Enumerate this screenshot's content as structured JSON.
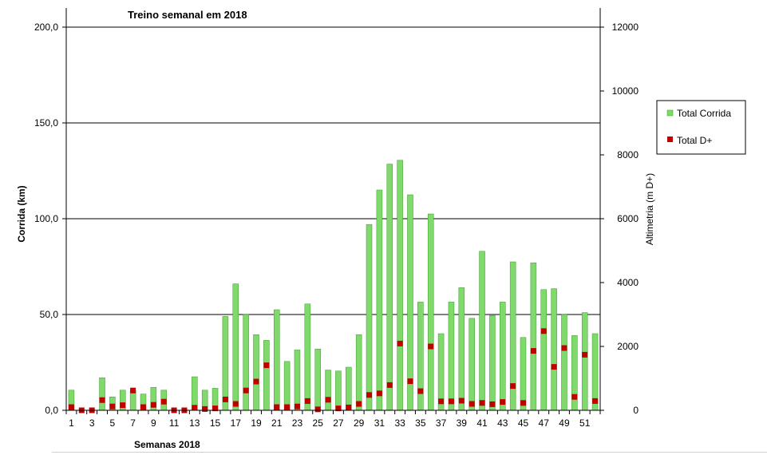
{
  "chart_data": {
    "type": "bar",
    "title": "Treino semanal em 2018",
    "xlabel": "Semanas 2018",
    "ylabel": "Corrida (km)",
    "y2label": "Altimetria (m D+)",
    "ylim": [
      0,
      200
    ],
    "y2lim": [
      0,
      12000
    ],
    "yticks": [
      "0,0",
      "50,0",
      "100,0",
      "150,0",
      "200,0"
    ],
    "y2ticks": [
      "0",
      "2000",
      "4000",
      "6000",
      "8000",
      "10000",
      "12000"
    ],
    "x_tick_labels": [
      "1",
      "3",
      "5",
      "7",
      "9",
      "11",
      "13",
      "15",
      "17",
      "19",
      "21",
      "23",
      "25",
      "27",
      "29",
      "31",
      "33",
      "35",
      "37",
      "39",
      "41",
      "43",
      "45",
      "47",
      "49",
      "51"
    ],
    "grid": "horizontal major",
    "legend_position": "right",
    "categories": [
      1,
      2,
      3,
      4,
      5,
      6,
      7,
      8,
      9,
      10,
      11,
      12,
      13,
      14,
      15,
      16,
      17,
      18,
      19,
      20,
      21,
      22,
      23,
      24,
      25,
      26,
      27,
      28,
      29,
      30,
      31,
      32,
      33,
      34,
      35,
      36,
      37,
      38,
      39,
      40,
      41,
      42,
      43,
      44,
      45,
      46,
      47,
      48,
      49,
      50,
      51,
      52
    ],
    "series": [
      {
        "name": "Total Corrida",
        "kind": "bar",
        "axis": "left",
        "color": "#7fd96b",
        "values": [
          10.5,
          0,
          0,
          17,
          7,
          10.5,
          10.5,
          8.5,
          12,
          10.5,
          0,
          0,
          17.5,
          10.5,
          11.5,
          49,
          66,
          50,
          39.5,
          36.5,
          52.5,
          25.5,
          31.5,
          55.5,
          32,
          21,
          20.5,
          22.5,
          39.5,
          97,
          115,
          128.5,
          130.5,
          112.5,
          56.5,
          102.5,
          40,
          56.5,
          64,
          48,
          83,
          49.5,
          56.5,
          77.5,
          38,
          77,
          63,
          63.5,
          50,
          39,
          51,
          40
        ]
      },
      {
        "name": "Total D+",
        "kind": "marker",
        "axis": "right",
        "color": "#c00000",
        "values": [
          100,
          0,
          0,
          320,
          120,
          160,
          620,
          100,
          170,
          270,
          0,
          0,
          80,
          40,
          60,
          340,
          200,
          620,
          900,
          1410,
          100,
          100,
          120,
          290,
          30,
          330,
          60,
          90,
          200,
          480,
          530,
          790,
          2090,
          910,
          600,
          2000,
          280,
          280,
          300,
          200,
          230,
          190,
          260,
          760,
          230,
          1860,
          2480,
          1360,
          1950,
          420,
          1740,
          290
        ]
      }
    ]
  }
}
